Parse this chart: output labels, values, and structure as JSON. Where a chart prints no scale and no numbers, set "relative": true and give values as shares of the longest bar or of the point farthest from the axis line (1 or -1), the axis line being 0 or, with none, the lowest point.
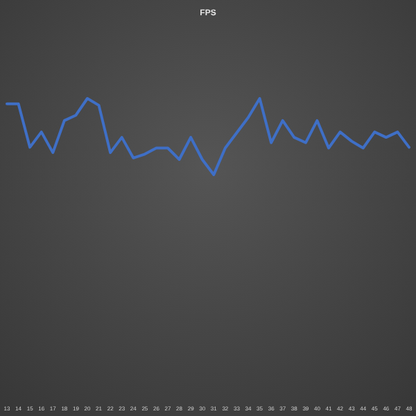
{
  "chart_data": {
    "type": "line",
    "title": "FPS",
    "relative": true,
    "categories": [
      "13",
      "14",
      "15",
      "16",
      "17",
      "18",
      "19",
      "20",
      "21",
      "22",
      "23",
      "24",
      "25",
      "26",
      "27",
      "28",
      "29",
      "30",
      "31",
      "32",
      "33",
      "34",
      "35",
      "36",
      "37",
      "38",
      "39",
      "40",
      "41",
      "42",
      "43",
      "44",
      "45",
      "46",
      "47",
      "48"
    ],
    "series": [
      {
        "color": "#3f6fc6",
        "values": [
          0.93,
          0.93,
          0.36,
          0.56,
          0.29,
          0.71,
          0.78,
          1,
          0.91,
          0.29,
          0.49,
          0.22,
          0.27,
          0.35,
          0.35,
          0.2,
          0.49,
          0.2,
          0,
          0.35,
          0.55,
          0.75,
          1,
          0.42,
          0.71,
          0.49,
          0.42,
          0.71,
          0.35,
          0.56,
          0.44,
          0.35,
          0.56,
          0.49,
          0.56,
          0.36
        ]
      }
    ]
  }
}
